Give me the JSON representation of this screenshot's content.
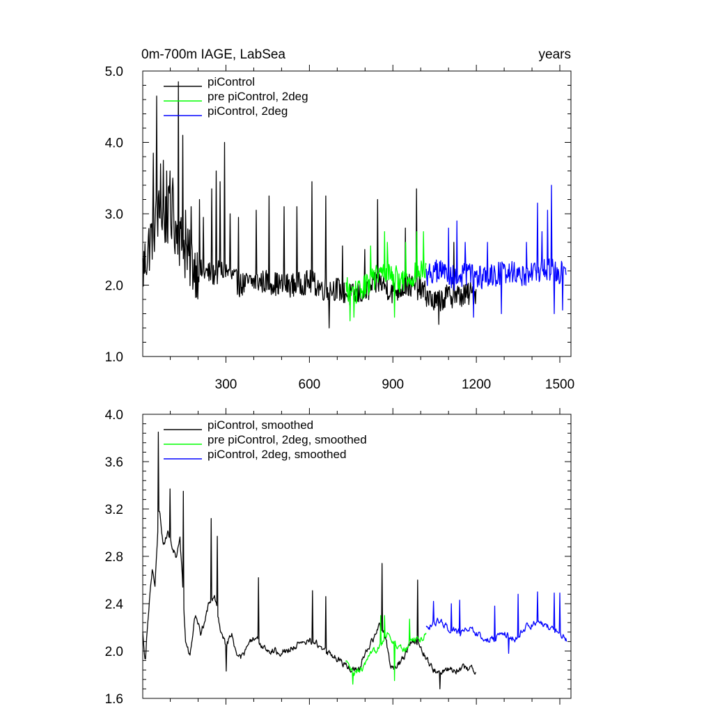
{
  "figure": {
    "title_left": "0m-700m IAGE, LabSea",
    "title_right": "years"
  },
  "chart_data": [
    {
      "type": "line",
      "panel": "top",
      "xlim": [
        1,
        1540
      ],
      "ylim": [
        1.0,
        5.0
      ],
      "x_ticks": [
        300,
        600,
        900,
        1200,
        1500
      ],
      "x_tick_labels": [
        "300",
        "600",
        "900",
        "1200",
        "1500"
      ],
      "y_ticks": [
        1.0,
        2.0,
        3.0,
        4.0,
        5.0
      ],
      "y_tick_labels": [
        "1.0",
        "2.0",
        "3.0",
        "4.0",
        "5.0"
      ],
      "legend_position": "top-left",
      "series": [
        {
          "name": "piControl",
          "color": "#000000",
          "x_start": 1,
          "x_end": 1200,
          "profile": [
            [
              1,
              2.2
            ],
            [
              20,
              2.5
            ],
            [
              40,
              2.8
            ],
            [
              60,
              3.0
            ],
            [
              80,
              2.9
            ],
            [
              100,
              3.0
            ],
            [
              120,
              2.8
            ],
            [
              140,
              2.6
            ],
            [
              160,
              2.4
            ],
            [
              200,
              2.2
            ],
            [
              250,
              2.15
            ],
            [
              300,
              2.2
            ],
            [
              350,
              2.0
            ],
            [
              400,
              2.05
            ],
            [
              450,
              2.05
            ],
            [
              500,
              2.0
            ],
            [
              550,
              2.0
            ],
            [
              600,
              2.05
            ],
            [
              650,
              1.95
            ],
            [
              700,
              1.95
            ],
            [
              750,
              1.85
            ],
            [
              800,
              1.9
            ],
            [
              850,
              2.05
            ],
            [
              900,
              1.9
            ],
            [
              950,
              2.0
            ],
            [
              1000,
              1.95
            ],
            [
              1050,
              1.75
            ],
            [
              1100,
              1.85
            ],
            [
              1150,
              1.85
            ],
            [
              1200,
              1.9
            ]
          ],
          "spikes": [
            [
              52,
              4.65
            ],
            [
              40,
              3.85
            ],
            [
              65,
              3.7
            ],
            [
              75,
              3.75
            ],
            [
              87,
              3.6
            ],
            [
              100,
              3.6
            ],
            [
              110,
              3.5
            ],
            [
              130,
              4.85
            ],
            [
              145,
              4.1
            ],
            [
              155,
              3.05
            ],
            [
              175,
              3.1
            ],
            [
              205,
              3.2
            ],
            [
              220,
              2.95
            ],
            [
              250,
              3.35
            ],
            [
              265,
              3.6
            ],
            [
              280,
              3.45
            ],
            [
              295,
              4.0
            ],
            [
              315,
              3.0
            ],
            [
              345,
              2.95
            ],
            [
              410,
              3.05
            ],
            [
              455,
              3.25
            ],
            [
              510,
              3.1
            ],
            [
              555,
              3.1
            ],
            [
              610,
              3.45
            ],
            [
              660,
              3.25
            ],
            [
              672,
              1.4
            ],
            [
              720,
              2.55
            ],
            [
              800,
              2.5
            ],
            [
              845,
              3.2
            ],
            [
              945,
              2.8
            ],
            [
              985,
              3.35
            ],
            [
              1065,
              1.45
            ],
            [
              1120,
              2.6
            ]
          ]
        },
        {
          "name": "pre piControl, 2deg",
          "color": "#00ff00",
          "x_start": 730,
          "x_end": 1020,
          "profile": [
            [
              730,
              1.95
            ],
            [
              780,
              1.9
            ],
            [
              830,
              2.1
            ],
            [
              880,
              2.2
            ],
            [
              930,
              2.05
            ],
            [
              980,
              2.15
            ],
            [
              1020,
              2.2
            ]
          ],
          "spikes": [
            [
              745,
              1.5
            ],
            [
              760,
              1.55
            ],
            [
              820,
              2.55
            ],
            [
              870,
              2.75
            ],
            [
              880,
              2.6
            ],
            [
              905,
              1.55
            ],
            [
              945,
              2.6
            ],
            [
              985,
              2.75
            ],
            [
              1010,
              2.75
            ]
          ]
        },
        {
          "name": "piControl, 2deg",
          "color": "#0000ff",
          "x_start": 1020,
          "x_end": 1525,
          "profile": [
            [
              1020,
              2.15
            ],
            [
              1070,
              2.2
            ],
            [
              1120,
              2.1
            ],
            [
              1170,
              2.15
            ],
            [
              1220,
              2.1
            ],
            [
              1270,
              2.15
            ],
            [
              1320,
              2.2
            ],
            [
              1370,
              2.15
            ],
            [
              1420,
              2.2
            ],
            [
              1470,
              2.2
            ],
            [
              1525,
              2.15
            ]
          ],
          "spikes": [
            [
              1100,
              2.8
            ],
            [
              1130,
              2.9
            ],
            [
              1160,
              2.6
            ],
            [
              1190,
              1.55
            ],
            [
              1240,
              2.6
            ],
            [
              1290,
              1.6
            ],
            [
              1380,
              2.6
            ],
            [
              1420,
              3.15
            ],
            [
              1435,
              2.75
            ],
            [
              1455,
              3.05
            ],
            [
              1470,
              3.4
            ],
            [
              1480,
              1.6
            ],
            [
              1510,
              1.65
            ]
          ]
        }
      ]
    },
    {
      "type": "line",
      "panel": "bottom",
      "xlim": [
        1,
        1540
      ],
      "ylim": [
        1.6,
        4.0
      ],
      "x_ticks": [
        300,
        600,
        900,
        1200,
        1500
      ],
      "y_ticks": [
        1.6,
        2.0,
        2.4,
        2.8,
        3.2,
        3.6,
        4.0
      ],
      "y_tick_labels": [
        "1.6",
        "2.0",
        "2.4",
        "2.8",
        "3.2",
        "3.6",
        "4.0"
      ],
      "legend_position": "top-left",
      "series": [
        {
          "name": "piControl, smoothed",
          "color": "#000000",
          "x_start": 1,
          "x_end": 1200,
          "profile": [
            [
              1,
              2.15
            ],
            [
              10,
              1.93
            ],
            [
              20,
              2.3
            ],
            [
              35,
              2.7
            ],
            [
              45,
              2.55
            ],
            [
              60,
              3.2
            ],
            [
              75,
              2.9
            ],
            [
              90,
              3.0
            ],
            [
              105,
              2.9
            ],
            [
              120,
              2.8
            ],
            [
              135,
              2.95
            ],
            [
              155,
              2.1
            ],
            [
              170,
              1.95
            ],
            [
              190,
              2.3
            ],
            [
              210,
              2.15
            ],
            [
              240,
              2.4
            ],
            [
              260,
              2.45
            ],
            [
              280,
              2.2
            ],
            [
              300,
              2.05
            ],
            [
              320,
              2.15
            ],
            [
              340,
              1.95
            ],
            [
              360,
              1.95
            ],
            [
              380,
              2.05
            ],
            [
              400,
              2.1
            ],
            [
              430,
              2.05
            ],
            [
              460,
              2.0
            ],
            [
              490,
              2.0
            ],
            [
              520,
              2.0
            ],
            [
              550,
              2.05
            ],
            [
              580,
              2.05
            ],
            [
              600,
              2.1
            ],
            [
              630,
              2.05
            ],
            [
              660,
              2.0
            ],
            [
              690,
              1.95
            ],
            [
              720,
              1.9
            ],
            [
              750,
              1.85
            ],
            [
              780,
              1.85
            ],
            [
              800,
              2.0
            ],
            [
              830,
              2.1
            ],
            [
              850,
              2.2
            ],
            [
              870,
              2.15
            ],
            [
              890,
              1.9
            ],
            [
              910,
              1.85
            ],
            [
              940,
              1.95
            ],
            [
              970,
              2.1
            ],
            [
              1000,
              2.05
            ],
            [
              1030,
              1.9
            ],
            [
              1060,
              1.8
            ],
            [
              1090,
              1.85
            ],
            [
              1120,
              1.85
            ],
            [
              1150,
              1.85
            ],
            [
              1180,
              1.85
            ],
            [
              1200,
              1.85
            ]
          ],
          "spikes": [
            [
              57,
              3.85
            ],
            [
              100,
              3.37
            ],
            [
              147,
              3.35
            ],
            [
              247,
              3.12
            ],
            [
              270,
              2.97
            ],
            [
              302,
              1.83
            ],
            [
              418,
              2.62
            ],
            [
              490,
              1.98
            ],
            [
              612,
              2.51
            ],
            [
              660,
              2.46
            ],
            [
              862,
              2.74
            ],
            [
              990,
              2.6
            ],
            [
              1070,
              1.68
            ]
          ]
        },
        {
          "name": "pre piControl, 2deg, smoothed",
          "color": "#00ff00",
          "x_start": 730,
          "x_end": 1020,
          "profile": [
            [
              730,
              1.9
            ],
            [
              760,
              1.8
            ],
            [
              790,
              1.85
            ],
            [
              820,
              1.95
            ],
            [
              850,
              2.05
            ],
            [
              880,
              2.15
            ],
            [
              910,
              2.05
            ],
            [
              940,
              2.0
            ],
            [
              970,
              2.1
            ],
            [
              1000,
              2.1
            ],
            [
              1020,
              2.15
            ]
          ],
          "spikes": [
            [
              755,
              1.72
            ],
            [
              855,
              2.3
            ],
            [
              870,
              2.3
            ],
            [
              905,
              1.75
            ],
            [
              960,
              2.27
            ]
          ]
        },
        {
          "name": "piControl, 2deg, smoothed",
          "color": "#0000ff",
          "x_start": 1020,
          "x_end": 1525,
          "profile": [
            [
              1020,
              2.2
            ],
            [
              1060,
              2.25
            ],
            [
              1100,
              2.2
            ],
            [
              1140,
              2.15
            ],
            [
              1180,
              2.2
            ],
            [
              1220,
              2.1
            ],
            [
              1260,
              2.1
            ],
            [
              1300,
              2.15
            ],
            [
              1340,
              2.1
            ],
            [
              1380,
              2.2
            ],
            [
              1420,
              2.25
            ],
            [
              1460,
              2.2
            ],
            [
              1500,
              2.15
            ],
            [
              1525,
              2.1
            ]
          ],
          "spikes": [
            [
              1045,
              2.42
            ],
            [
              1110,
              2.4
            ],
            [
              1140,
              2.43
            ],
            [
              1265,
              2.38
            ],
            [
              1315,
              1.98
            ],
            [
              1350,
              2.48
            ],
            [
              1420,
              2.5
            ],
            [
              1480,
              2.49
            ],
            [
              1500,
              2.49
            ]
          ]
        }
      ]
    }
  ]
}
